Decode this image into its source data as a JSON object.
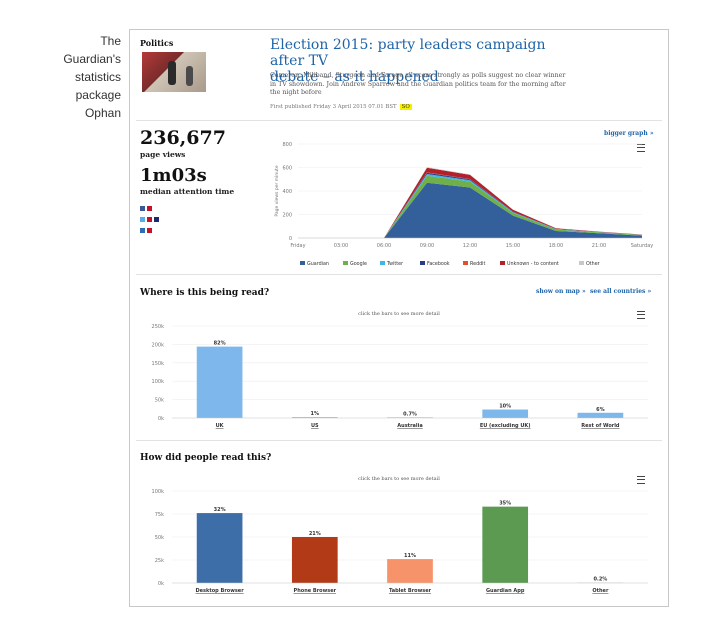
{
  "caption": {
    "lines": [
      "The",
      "Guardian's",
      "statistics",
      "package",
      "Ophan"
    ]
  },
  "article": {
    "tag": "Politics",
    "title_line1": "Election 2015: party leaders campaign after TV",
    "title_line2": "debate – as it happened",
    "standfirst": "Cameron, Miliband, Sturgeon and Farage all score strongly as polls suggest no clear winner in TV showdown. Join Andrew Sparrow and the Guardian politics team for the morning after the night before",
    "published": "First published Friday 3 April 2015 07.01 BST",
    "published_badge": "SO"
  },
  "stats": {
    "page_views": "236,677",
    "page_views_label": "page views",
    "attention_time": "1m03s",
    "attention_label": "median attention time",
    "bigger_graph_link": "bigger graph »",
    "flag_colors": [
      "#3b5998",
      "#55acee",
      "#2c6db3"
    ]
  },
  "traffic_chart": {
    "y_ticks": [
      "800",
      "600",
      "400",
      "200",
      "0"
    ],
    "y_label": "Page views per minute",
    "x_ticks": [
      "Friday",
      "03:00",
      "06:00",
      "09:00",
      "12:00",
      "15:00",
      "18:00",
      "21:00",
      "Saturday"
    ],
    "legend": [
      {
        "name": "Guardian",
        "color": "#33609a"
      },
      {
        "name": "Google",
        "color": "#6fb04a"
      },
      {
        "name": "Twitter",
        "color": "#41b6e6"
      },
      {
        "name": "Facebook",
        "color": "#2a3b88"
      },
      {
        "name": "Reddit",
        "color": "#e0502a"
      },
      {
        "name": "Unknown - to content",
        "color": "#b3202a"
      },
      {
        "name": "Other",
        "color": "#c8c8c8"
      }
    ]
  },
  "where_section": {
    "title": "Where is this being read?",
    "show_on_map": "show on map »",
    "see_all_countries": "see all countries »",
    "hint": "click the bars to see more detail"
  },
  "how_section": {
    "title": "How did people read this?",
    "hint": "click the bars to see more detail"
  },
  "chart_data": [
    {
      "type": "area",
      "x": [
        "Friday",
        "03:00",
        "06:00",
        "09:00",
        "12:00",
        "15:00",
        "18:00",
        "21:00",
        "Saturday"
      ],
      "ylabel": "Page views per minute",
      "ylim": [
        0,
        800
      ],
      "series": [
        {
          "name": "Guardian",
          "values": [
            0,
            0,
            0,
            470,
            430,
            190,
            60,
            40,
            20
          ]
        },
        {
          "name": "Google",
          "values": [
            0,
            0,
            0,
            60,
            50,
            25,
            12,
            8,
            5
          ]
        },
        {
          "name": "Twitter",
          "values": [
            0,
            0,
            0,
            15,
            12,
            5,
            3,
            2,
            1
          ]
        },
        {
          "name": "Facebook",
          "values": [
            0,
            0,
            0,
            10,
            8,
            4,
            2,
            1,
            1
          ]
        },
        {
          "name": "Reddit",
          "values": [
            0,
            0,
            0,
            3,
            2,
            1,
            1,
            0,
            0
          ]
        },
        {
          "name": "Unknown - to content",
          "values": [
            0,
            0,
            0,
            40,
            35,
            15,
            5,
            3,
            2
          ]
        },
        {
          "name": "Other",
          "values": [
            0,
            0,
            0,
            5,
            4,
            2,
            1,
            1,
            0
          ]
        }
      ],
      "legend_position": "bottom"
    },
    {
      "type": "bar",
      "categories": [
        "UK",
        "US",
        "Australia",
        "EU (excluding UK)",
        "Rest of World"
      ],
      "values": [
        194000,
        2400,
        1700,
        23000,
        14200
      ],
      "data_labels": [
        "82%",
        "1%",
        "0.7%",
        "10%",
        "6%"
      ],
      "y_ticks": [
        "250k",
        "200k",
        "150k",
        "100k",
        "50k",
        "0k"
      ],
      "ylim": [
        0,
        250000
      ],
      "color": "#7db7ec"
    },
    {
      "type": "bar",
      "categories": [
        "Desktop Browser",
        "Phone Browser",
        "Tablet Browser",
        "Guardian App",
        "Other"
      ],
      "values": [
        76000,
        50000,
        26000,
        83000,
        500
      ],
      "data_labels": [
        "32%",
        "21%",
        "11%",
        "35%",
        "0.2%"
      ],
      "colors": [
        "#3d6ea8",
        "#b23a16",
        "#f6936a",
        "#5c9a52",
        "#cccccc"
      ],
      "y_ticks": [
        "100k",
        "75k",
        "50k",
        "25k",
        "0k"
      ],
      "ylim": [
        0,
        100000
      ]
    }
  ]
}
